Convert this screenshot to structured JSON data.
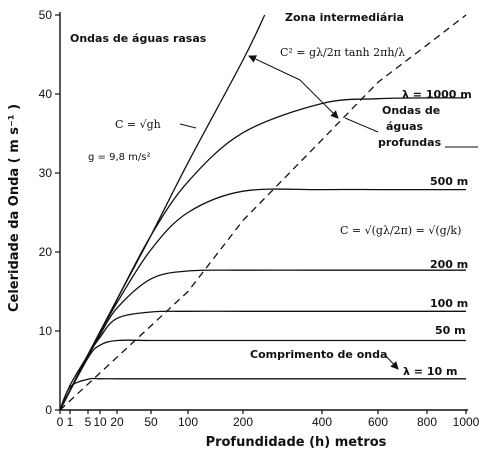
{
  "chart_data": {
    "type": "line",
    "title": "",
    "xlabel": "Profundidade (h) metros",
    "ylabel": "Celeridade da Onda  ( m s⁻¹ )",
    "ylim": [
      0,
      50
    ],
    "yticks": [
      0,
      10,
      20,
      30,
      40,
      50
    ],
    "xticks": [
      "0",
      "1",
      "5",
      "10",
      "20",
      "50",
      "100",
      "200",
      "400",
      "600",
      "800",
      "1000"
    ],
    "x_scale": "non-linear (expanded near zero)",
    "grid": false,
    "series": [
      {
        "name": "λ = 1000 m",
        "wavelength_m": 1000,
        "x": [
          0,
          5,
          10,
          20,
          50,
          100,
          200,
          400,
          600,
          800,
          1000
        ],
        "values": [
          0,
          7,
          9.9,
          14,
          22.1,
          28.9,
          35.1,
          38.8,
          39.4,
          39.5,
          39.5
        ]
      },
      {
        "name": "500 m",
        "wavelength_m": 500,
        "x": [
          0,
          5,
          10,
          20,
          50,
          100,
          200,
          400,
          600,
          800,
          1000
        ],
        "values": [
          0,
          7,
          9.8,
          13.6,
          20.3,
          25,
          27.7,
          27.9,
          27.9,
          27.9,
          27.9
        ]
      },
      {
        "name": "200 m",
        "wavelength_m": 200,
        "x": [
          0,
          5,
          10,
          20,
          50,
          100,
          200,
          400,
          600,
          800,
          1000
        ],
        "values": [
          0,
          6.9,
          9.5,
          12.9,
          16.6,
          17.6,
          17.7,
          17.7,
          17.7,
          17.7,
          17.7
        ]
      },
      {
        "name": "100 m",
        "wavelength_m": 100,
        "x": [
          0,
          5,
          10,
          20,
          50,
          100,
          200,
          400,
          600,
          800,
          1000
        ],
        "values": [
          0,
          6.8,
          9.2,
          11.6,
          12.4,
          12.5,
          12.5,
          12.5,
          12.5,
          12.5,
          12.5
        ]
      },
      {
        "name": "50 m",
        "wavelength_m": 50,
        "x": [
          0,
          5,
          10,
          20,
          50,
          100,
          200,
          400,
          600,
          800,
          1000
        ],
        "values": [
          0,
          6.6,
          8.2,
          8.8,
          8.8,
          8.8,
          8.8,
          8.8,
          8.8,
          8.8,
          8.8
        ]
      },
      {
        "name": "λ = 10 m",
        "wavelength_m": 10,
        "x": [
          0,
          1,
          5,
          10,
          20,
          50,
          100,
          200,
          400,
          600,
          800,
          1000
        ],
        "values": [
          0,
          2.9,
          3.9,
          3.95,
          3.95,
          3.95,
          3.95,
          3.95,
          3.95,
          3.95,
          3.95,
          3.95
        ]
      }
    ],
    "shallow_limit": {
      "label": "C = √gh",
      "x": [
        0,
        1,
        5,
        10,
        20,
        50,
        100,
        200,
        255
      ],
      "values": [
        0,
        3.13,
        7,
        9.9,
        14,
        22.1,
        31.3,
        44.3,
        50
      ]
    },
    "deep_limit_dashed": {
      "x": [
        0,
        100,
        200,
        400,
        600,
        800,
        1000
      ],
      "values": [
        0,
        15,
        24,
        34.2,
        41.5,
        46.2,
        50
      ]
    },
    "annotations": {
      "shallow": "Ondas de águas rasas",
      "intermediate": "Zona intermediária",
      "intermediate_formula": "C² = gλ/2π tanh 2πh/λ",
      "deep": [
        "Ondas de",
        "águas",
        "profundas"
      ],
      "deep_formula": "C = √(gλ/2π) = √(g/k)",
      "gravity": "g = 9,8 m/s²",
      "sqrt_gh": "C = √gh",
      "wavelength": "Comprimento de onda"
    }
  }
}
